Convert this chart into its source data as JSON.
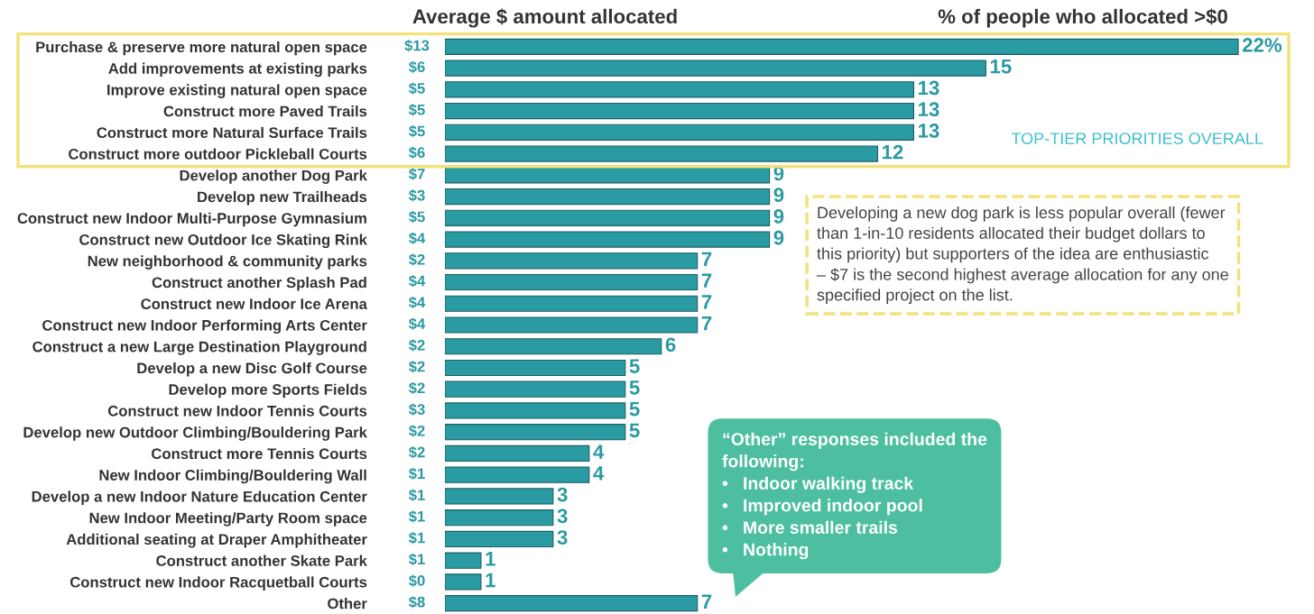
{
  "chart_data": {
    "type": "bar",
    "orientation": "horizontal",
    "categories": [
      "Purchase & preserve more natural open space",
      "Add improvements at existing parks",
      "Improve existing natural open space",
      "Construct more Paved Trails",
      "Construct more Natural Surface Trails",
      "Construct more outdoor Pickleball Courts",
      "Develop another Dog Park",
      "Develop new Trailheads",
      "Construct new Indoor Multi-Purpose Gymnasium",
      "Construct new Outdoor Ice Skating Rink",
      "New neighborhood & community parks",
      "Construct another Splash Pad",
      "Construct new Indoor Ice Arena",
      "Construct new Indoor Performing Arts Center",
      "Construct a new Large Destination Playground",
      "Develop a new Disc Golf Course",
      "Develop more Sports Fields",
      "Construct new Indoor Tennis Courts",
      "Develop new Outdoor Climbing/Bouldering Park",
      "Construct more Tennis Courts",
      "New Indoor Climbing/Bouldering Wall",
      "Develop a new Indoor Nature Education Center",
      "New Indoor Meeting/Party Room space",
      "Additional seating at Draper Amphitheater",
      "Construct another Skate Park",
      "Construct new Indoor Racquetball Courts",
      "Other"
    ],
    "values": [
      22,
      15,
      13,
      13,
      13,
      12,
      9,
      9,
      9,
      9,
      7,
      7,
      7,
      7,
      6,
      5,
      5,
      5,
      5,
      4,
      4,
      3,
      3,
      3,
      1,
      1,
      7
    ],
    "value_labels": [
      "22%",
      "15",
      "13",
      "13",
      "13",
      "12",
      "9",
      "9",
      "9",
      "9",
      "7",
      "7",
      "7",
      "7",
      "6",
      "5",
      "5",
      "5",
      "5",
      "4",
      "4",
      "3",
      "3",
      "3",
      "1",
      "1",
      "7"
    ],
    "color": "#2a9aa3",
    "tick_labels": "y",
    "annotations": [
      "Average $ amount allocated",
      "% of people who allocated >$0",
      "TOP-TIER PRIORITIES OVERALL",
      "Developing a new dog park is less popular overall (fewer\nthan 1-in-10 residents allocated their budget dollars to\nthis priority) but supporters of the idea are enthusiastic\n– $7 is the second highest average allocation for any one\nspecified project on the list.",
      "“Other” responses included the\nfollowing:\n•   Indoor walking track\n•   Improved indoor pool\n•   More smaller trails\n•   Nothing",
      "$13",
      "$6",
      "$5",
      "$5",
      "$5",
      "$6",
      "$7",
      "$3",
      "$5",
      "$4",
      "$2",
      "$4",
      "$4",
      "$4",
      "$2",
      "$2",
      "$2",
      "$3",
      "$2",
      "$2",
      "$1",
      "$1",
      "$1",
      "$1",
      "$1",
      "$0",
      "$8"
    ]
  }
}
